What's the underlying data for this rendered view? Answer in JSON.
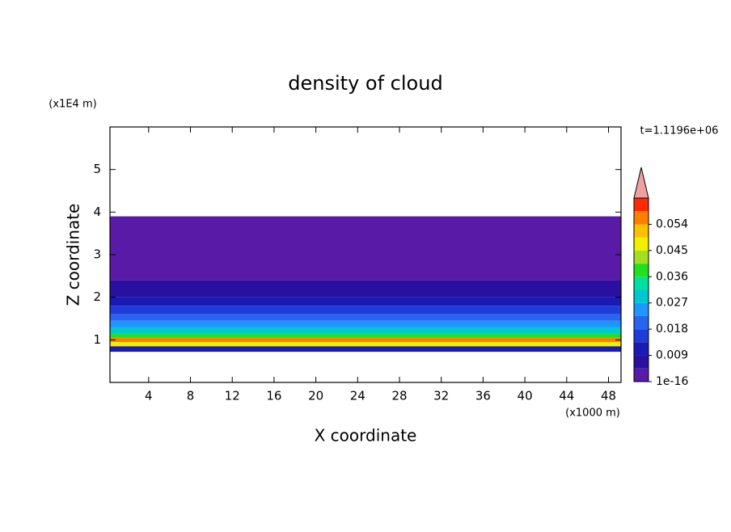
{
  "chart_data": {
    "type": "contour",
    "title": "density of cloud",
    "x_label": "X coordinate",
    "y_label": "Z coordinate",
    "x_unit": "(x1000 m)",
    "y_unit": "(x1E4 m)",
    "time_label": "t=1.1196e+06",
    "xlim": [
      0.3,
      49.2
    ],
    "xticks": [
      4,
      8,
      12,
      16,
      20,
      24,
      28,
      32,
      36,
      40,
      44,
      48
    ],
    "ylim": [
      0,
      6
    ],
    "yticks": [
      1,
      2,
      3,
      4,
      5
    ],
    "z": [
      0.72,
      0.85,
      0.95,
      1.05,
      1.15,
      1.3,
      1.45,
      1.6,
      1.8,
      2.0,
      2.4,
      3.0,
      3.9
    ],
    "values": [
      0.012,
      0.045,
      0.055,
      0.04,
      0.03,
      0.025,
      0.02,
      0.015,
      0.01,
      0.007,
      0.004,
      0.001
    ],
    "clim": [
      0,
      0.063
    ],
    "colorbar_ticks": [
      1e-16,
      0.009,
      0.018,
      0.027,
      0.036,
      0.045,
      0.054
    ],
    "colors": [
      "#5a1aa8",
      "#2a10a0",
      "#1a1ab4",
      "#1e3cdc",
      "#2864f0",
      "#1e96ff",
      "#00c8d0",
      "#00e0a0",
      "#20e020",
      "#a0e020",
      "#f0f000",
      "#ffc000",
      "#ff8000",
      "#ff2a00"
    ],
    "extend_color": "#f0a0a0"
  }
}
